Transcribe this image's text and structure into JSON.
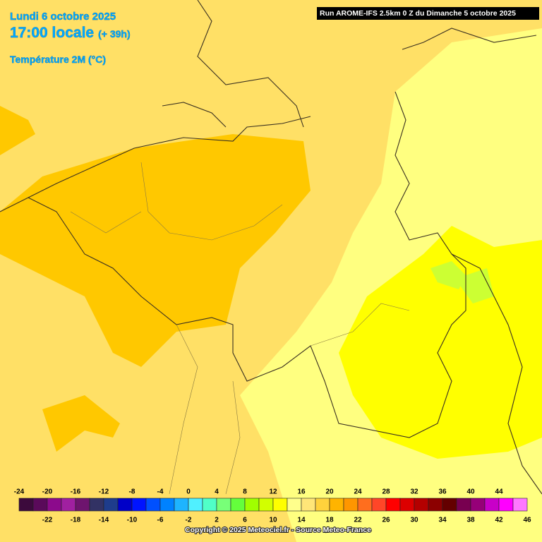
{
  "header": {
    "date": "Lundi 6 octobre 2025",
    "time": "17:00 locale",
    "lead": "(+ 39h)",
    "variable": "Température 2M (°C)"
  },
  "run": "Run AROME-IFS 2.5km 0 Z du Dimanche 5 octobre 2025",
  "legend": {
    "values": [
      -24,
      -22,
      -20,
      -18,
      -16,
      -14,
      -12,
      -10,
      -8,
      -6,
      -4,
      -2,
      0,
      2,
      4,
      6,
      8,
      10,
      12,
      14,
      16,
      18,
      20,
      22,
      24,
      26,
      28,
      30,
      32,
      34,
      36,
      38,
      40,
      42,
      44,
      46
    ],
    "colors": [
      "#3c0a3c",
      "#5a0a5a",
      "#8c0a8c",
      "#a020a0",
      "#6e146e",
      "#323264",
      "#1e3c8c",
      "#0000c8",
      "#0014ff",
      "#0050ff",
      "#0082ff",
      "#1eb4ff",
      "#50f0ff",
      "#50ffc8",
      "#78ff78",
      "#64ff3c",
      "#a0ff00",
      "#d2ff00",
      "#ffff00",
      "#ffff8c",
      "#ffe678",
      "#ffd23c",
      "#ffb400",
      "#ff9600",
      "#ff6e1e",
      "#ff4628",
      "#ff0000",
      "#dc0000",
      "#b40000",
      "#8c0000",
      "#640000",
      "#780050",
      "#960078",
      "#c800c8",
      "#ff00ff",
      "#ff78ff"
    ]
  },
  "credit": "Copyright © 2025 Meteociel.fr - Source Meteo-France"
}
